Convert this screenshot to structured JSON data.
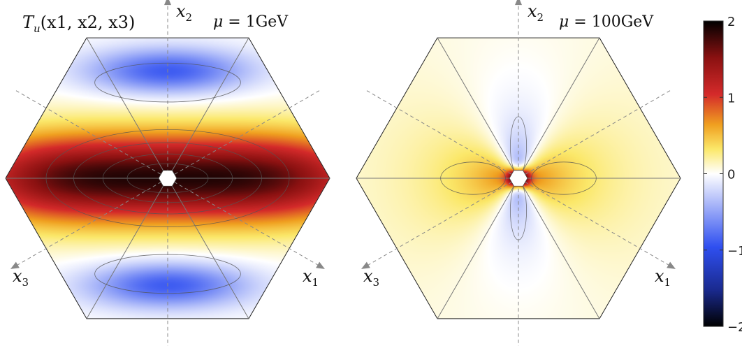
{
  "chart_data": [
    {
      "type": "heatmap",
      "title": "T_u(x1, x2, x3)",
      "title_parts": {
        "sym": "T",
        "sub": "u",
        "args": "(x1, x2, x3)"
      },
      "annotation": {
        "prefix": "μ = ",
        "value": "1GeV"
      },
      "axes": [
        {
          "label": "x2",
          "sym": "x",
          "sub": "2"
        },
        {
          "label": "x1",
          "sym": "x",
          "sub": "1"
        },
        {
          "label": "x3",
          "sym": "x",
          "sub": "3"
        }
      ],
      "scale": 1.0,
      "features": {
        "band_center_value": 1.6,
        "lobe_value": -0.9,
        "lobe_positions": [
          "top",
          "bottom"
        ]
      }
    },
    {
      "type": "heatmap",
      "annotation": {
        "prefix": "μ = ",
        "value": "100GeV"
      },
      "axes": [
        {
          "label": "x2",
          "sym": "x",
          "sub": "2"
        },
        {
          "label": "x1",
          "sym": "x",
          "sub": "1"
        },
        {
          "label": "x3",
          "sym": "x",
          "sub": "3"
        }
      ],
      "scale": 0.7,
      "features": {
        "center_peak_value": 2.0,
        "wings_value": 0.9,
        "vertical_lobe_value": -0.7
      }
    }
  ],
  "colorbar": {
    "range": [
      -2,
      2
    ],
    "ticks": [
      2,
      1,
      0,
      -1,
      -2
    ],
    "tick_labels": [
      "2",
      "1",
      "0",
      "−1",
      "−2"
    ],
    "colors": [
      "#000000",
      "#1a2a8f",
      "#2f4ff0",
      "#ffffff",
      "#fbe86a",
      "#f0a020",
      "#d42a2a",
      "#8a1111",
      "#000000"
    ]
  }
}
